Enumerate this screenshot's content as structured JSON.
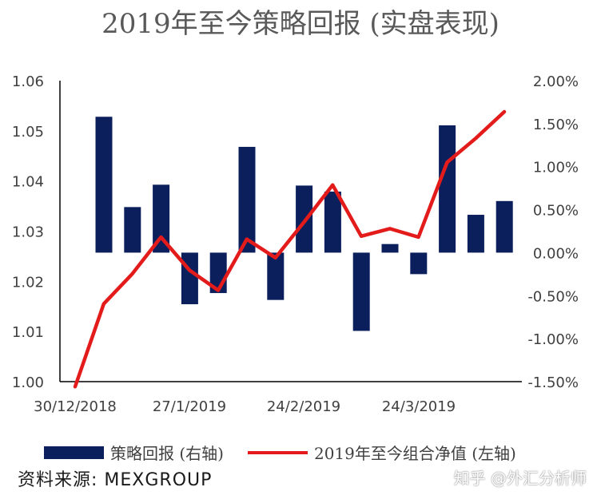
{
  "chart_data": {
    "type": "bar+line",
    "title": "2019年至今策略回报 (实盘表现)",
    "x_tick_labels": [
      "30/12/2018",
      "27/1/2019",
      "24/2/2019",
      "24/3/2019"
    ],
    "y_left_ticks": [
      "1.00",
      "1.01",
      "1.02",
      "1.03",
      "1.04",
      "1.05",
      "1.06"
    ],
    "y_right_ticks": [
      "-1.50%",
      "-1.00%",
      "-0.50%",
      "0.00%",
      "0.50%",
      "1.00%",
      "1.50%",
      "2.00%"
    ],
    "y_left_range": [
      1.0,
      1.06
    ],
    "y_right_range": [
      -1.5,
      2.0
    ],
    "series": [
      {
        "name": "策略回报 (右轴)",
        "axis": "right",
        "type": "bar",
        "unit": "%",
        "values": [
          1.58,
          0.53,
          0.79,
          -0.6,
          -0.47,
          1.23,
          -0.55,
          0.78,
          0.71,
          -0.91,
          0.1,
          -0.25,
          1.48,
          0.44,
          0.6
        ]
      },
      {
        "name": "2019年至今组合净值 (左轴)",
        "axis": "left",
        "type": "line",
        "values": [
          0.999,
          1.0155,
          1.0215,
          1.0288,
          1.0222,
          1.0182,
          1.0284,
          1.0247,
          1.0318,
          1.0392,
          1.029,
          1.0305,
          1.0288,
          1.0437,
          1.0485,
          1.0538
        ]
      }
    ],
    "legend_position": "bottom",
    "grid": false
  },
  "source": "资料来源: MEXGROUP",
  "watermark": "知乎 @外汇分析师",
  "colors": {
    "bar": "#0b1f5c",
    "line": "#e31b1b",
    "axis": "#000000"
  }
}
